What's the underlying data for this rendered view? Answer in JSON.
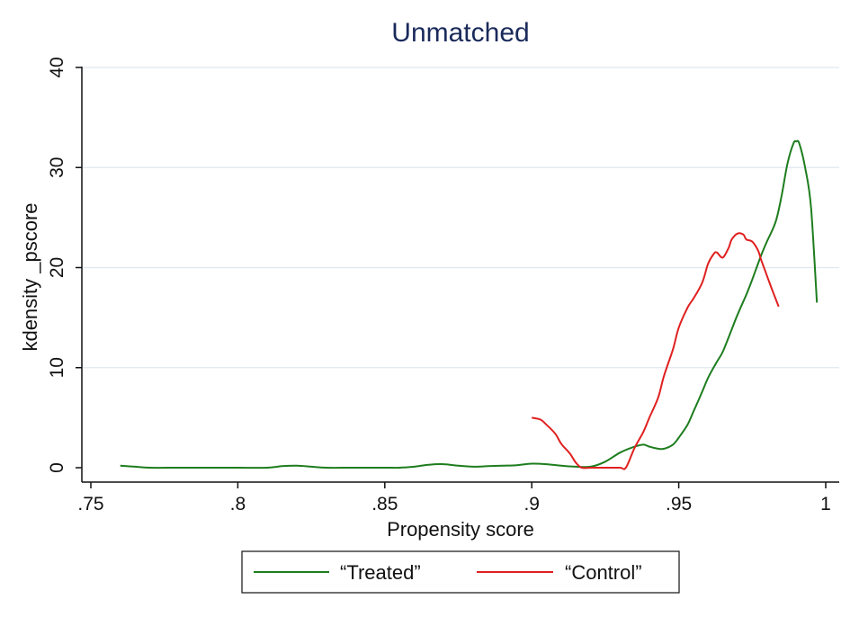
{
  "chart_data": {
    "type": "line",
    "title": "Unmatched",
    "xlabel": "Propensity score",
    "ylabel": "kdensity _pscore",
    "xlim": [
      0.75,
      1.0
    ],
    "ylim": [
      0,
      40
    ],
    "x_ticks": [
      ".75",
      ".8",
      ".85",
      ".9",
      ".95",
      "1"
    ],
    "y_ticks": [
      "0",
      "10",
      "20",
      "30",
      "40"
    ],
    "grid": true,
    "legend_position": "bottom",
    "series": [
      {
        "name": "“Treated”",
        "color": "#1e7d1e",
        "x": [
          0.76,
          0.765,
          0.77,
          0.78,
          0.79,
          0.8,
          0.81,
          0.815,
          0.82,
          0.825,
          0.83,
          0.84,
          0.85,
          0.855,
          0.86,
          0.865,
          0.87,
          0.875,
          0.88,
          0.885,
          0.89,
          0.895,
          0.9,
          0.905,
          0.91,
          0.915,
          0.92,
          0.925,
          0.93,
          0.935,
          0.938,
          0.94,
          0.943,
          0.945,
          0.948,
          0.95,
          0.953,
          0.955,
          0.958,
          0.96,
          0.963,
          0.965,
          0.968,
          0.97,
          0.973,
          0.975,
          0.978,
          0.98,
          0.983,
          0.985,
          0.987,
          0.989,
          0.99,
          0.991,
          0.993,
          0.995,
          0.997
        ],
        "y": [
          0.2,
          0.1,
          0.0,
          0.0,
          0.0,
          0.0,
          0.0,
          0.15,
          0.2,
          0.1,
          0.0,
          0.0,
          0.0,
          0.0,
          0.1,
          0.3,
          0.35,
          0.2,
          0.1,
          0.15,
          0.2,
          0.25,
          0.4,
          0.35,
          0.2,
          0.1,
          0.1,
          0.6,
          1.5,
          2.1,
          2.3,
          2.1,
          1.9,
          1.9,
          2.3,
          3.0,
          4.3,
          5.6,
          7.6,
          9.0,
          10.6,
          11.6,
          13.8,
          15.3,
          17.3,
          18.8,
          21.2,
          22.6,
          24.6,
          27.2,
          30.4,
          32.4,
          32.6,
          32.4,
          30.0,
          26.0,
          16.5
        ]
      },
      {
        "name": "“Control”",
        "color": "#e02020",
        "x": [
          0.9,
          0.903,
          0.905,
          0.908,
          0.91,
          0.913,
          0.915,
          0.917,
          0.92,
          0.925,
          0.93,
          0.932,
          0.935,
          0.938,
          0.94,
          0.943,
          0.945,
          0.948,
          0.95,
          0.953,
          0.955,
          0.958,
          0.96,
          0.962,
          0.963,
          0.965,
          0.967,
          0.968,
          0.97,
          0.972,
          0.973,
          0.975,
          0.977,
          0.978,
          0.98,
          0.982,
          0.984
        ],
        "y": [
          5.0,
          4.8,
          4.3,
          3.4,
          2.4,
          1.4,
          0.5,
          0.0,
          0.0,
          0.0,
          0.0,
          0.0,
          2.0,
          3.6,
          5.0,
          7.0,
          9.2,
          11.8,
          14.0,
          16.0,
          16.9,
          18.5,
          20.4,
          21.4,
          21.5,
          21.0,
          22.0,
          22.8,
          23.4,
          23.3,
          22.8,
          22.6,
          21.7,
          20.8,
          19.2,
          17.6,
          16.1
        ]
      }
    ]
  }
}
